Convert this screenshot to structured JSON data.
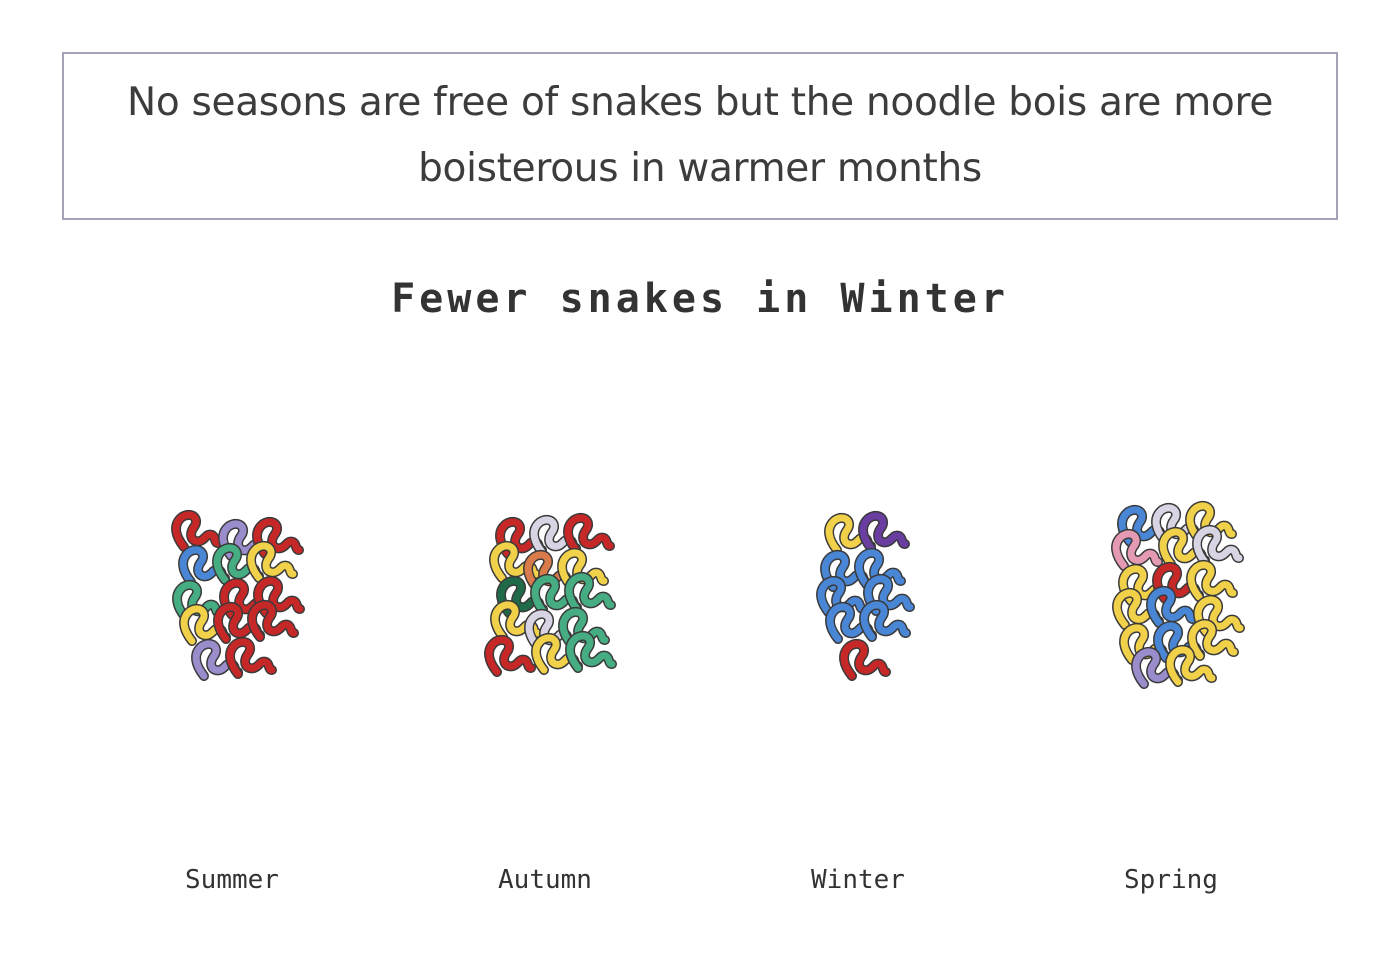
{
  "headline": "No seasons are free of snakes but the noodle bois are more boisterous in warmer months",
  "chart_data": {
    "type": "pictogram",
    "title": "Fewer snakes in Winter",
    "categories": [
      "Summer",
      "Autumn",
      "Winter",
      "Spring"
    ],
    "values": [
      14,
      15,
      9,
      17
    ],
    "unit_icon": "snake-icon",
    "snakes": {
      "Summer": [
        "#c62828",
        "#9b8ccc",
        "#c62828",
        "#4a86d6",
        "#46ad83",
        "#f1d04a",
        "#46ad83",
        "#c62828",
        "#c62828",
        "#f1d04a",
        "#c62828",
        "#c62828",
        "#9b8ccc",
        "#c62828"
      ],
      "Autumn": [
        "#c62828",
        "#d9d4e4",
        "#c62828",
        "#f1d04a",
        "#d97b4a",
        "#f1d04a",
        "#1f6a48",
        "#46ad83",
        "#46ad83",
        "#f1d04a",
        "#d9d4e4",
        "#46ad83",
        "#c62828",
        "#f1d04a",
        "#46ad83"
      ],
      "Winter": [
        "#f1d04a",
        "#6a3ea1",
        "#4a86d6",
        "#4a86d6",
        "#4a86d6",
        "#4a86d6",
        "#4a86d6",
        "#4a86d6",
        "#c62828"
      ],
      "Spring": [
        "#4a86d6",
        "#d9d4e4",
        "#f1d04a",
        "#e39ab2",
        "#f1d04a",
        "#d9d4e4",
        "#f1d04a",
        "#c62828",
        "#f1d04a",
        "#f1d04a",
        "#4a86d6",
        "#f1d04a",
        "#f1d04a",
        "#4a86d6",
        "#f1d04a",
        "#9b8ccc",
        "#f1d04a"
      ]
    }
  }
}
